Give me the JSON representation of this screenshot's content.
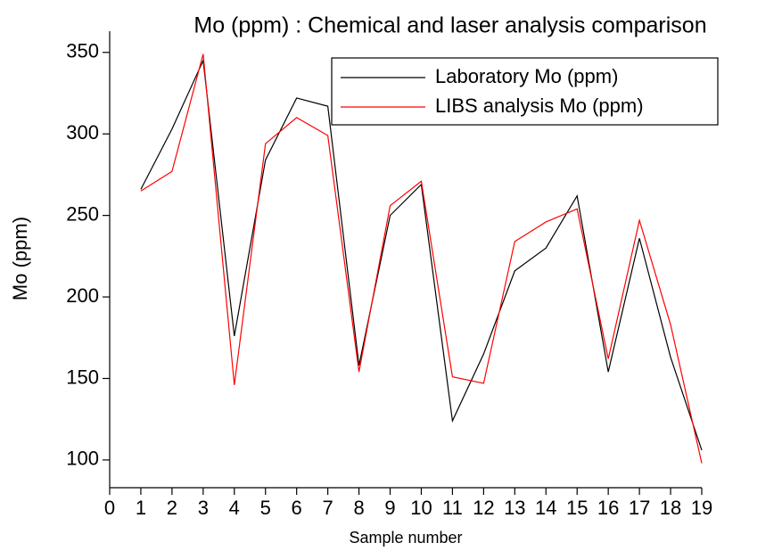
{
  "chart_data": {
    "type": "line",
    "title": "Mo (ppm) : Chemical and laser analysis comparison",
    "x_label": "Sample number",
    "y_label": "Mo (ppm)",
    "x": [
      1,
      2,
      3,
      4,
      5,
      6,
      7,
      8,
      9,
      10,
      11,
      12,
      13,
      14,
      15,
      16,
      17,
      18,
      19
    ],
    "series": [
      {
        "name": "Laboratory Mo (ppm)",
        "color": "#000000",
        "values": [
          266,
          303,
          345,
          176,
          284,
          322,
          317,
          158,
          250,
          269,
          124,
          165,
          216,
          230,
          262,
          154,
          236,
          163,
          106
        ]
      },
      {
        "name": "LIBS analysis Mo (ppm)",
        "color": "#ff0000",
        "values": [
          265,
          277,
          349,
          146,
          294,
          310,
          299,
          154,
          256,
          271,
          151,
          147,
          234,
          246,
          254,
          162,
          247,
          183,
          98
        ]
      }
    ],
    "xlim": [
      0,
      19
    ],
    "xticks": [
      0,
      1,
      2,
      3,
      4,
      5,
      6,
      7,
      8,
      9,
      10,
      11,
      12,
      13,
      14,
      15,
      16,
      17,
      18,
      19
    ],
    "ylim": [
      83,
      363
    ],
    "yticks": [
      100,
      150,
      200,
      250,
      300,
      350
    ],
    "legend": "upper right",
    "grid": false
  }
}
